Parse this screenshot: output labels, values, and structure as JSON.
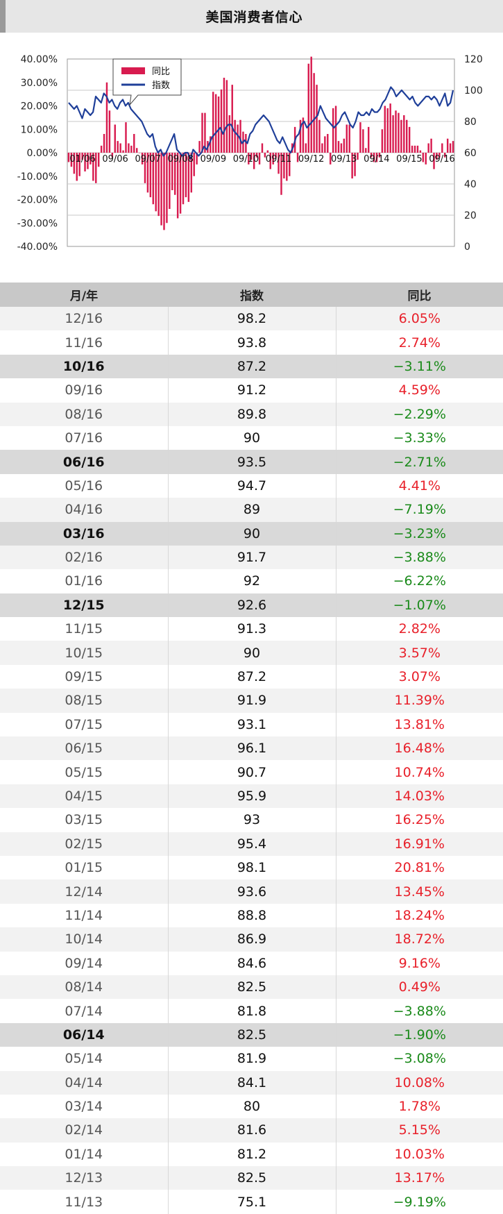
{
  "page_title": "美国消费者信心",
  "colors": {
    "bar": "#d81b4f",
    "line": "#1f3f99",
    "positive": "#e8202a",
    "negative": "#1a8a1a"
  },
  "chart_data": {
    "type": "bar+line",
    "series": [
      {
        "name": "同比",
        "kind": "bar",
        "axis": "left"
      },
      {
        "name": "指数",
        "kind": "line",
        "axis": "right"
      }
    ],
    "y_left": {
      "min": -40,
      "max": 40,
      "ticks": [
        "40.00%",
        "30.00%",
        "20.00%",
        "10.00%",
        "0.00%",
        "-10.00%",
        "-20.00%",
        "-30.00%",
        "-40.00%"
      ]
    },
    "y_right": {
      "min": 0,
      "max": 120,
      "ticks": [
        "120",
        "100",
        "80",
        "60",
        "40",
        "20",
        "0"
      ]
    },
    "x_labels": [
      "01/06",
      "09/06",
      "09/07",
      "09/08",
      "09/09",
      "09/10",
      "09/11",
      "09/12",
      "09/13",
      "09/14",
      "09/15",
      "09/16"
    ],
    "grid": true,
    "legend_position": "top-left",
    "bars": [
      -4,
      -6,
      -9,
      -12,
      -10,
      -3,
      -8,
      -7,
      -5,
      -12,
      -13,
      -6,
      3,
      8,
      30,
      18,
      -2,
      12,
      5,
      4,
      1,
      13,
      4,
      3,
      8,
      2,
      0,
      -5,
      -13,
      -17,
      -19,
      -22,
      -25,
      -27,
      -31,
      -33,
      -30,
      -24,
      -16,
      -18,
      -28,
      -26,
      -22,
      -19,
      -21,
      -17,
      -10,
      -5,
      5,
      17,
      17,
      5,
      7,
      26,
      25,
      24,
      27,
      32,
      31,
      16,
      29,
      14,
      12,
      14,
      9,
      8,
      -5,
      -3,
      -7,
      -2,
      -5,
      4,
      -2,
      1,
      -7,
      -5,
      -2,
      -9,
      -18,
      -11,
      -12,
      -10,
      4,
      11,
      -4,
      14,
      15,
      4,
      38,
      41,
      34,
      29,
      14,
      4,
      7,
      8,
      -5,
      19,
      20,
      5,
      4,
      6,
      12,
      12,
      -11,
      -10,
      -3,
      13,
      10,
      2,
      11,
      -2,
      -4,
      -4,
      -2,
      10,
      20,
      19,
      21,
      16,
      18,
      17,
      14,
      16,
      14,
      11,
      3,
      3,
      3,
      1,
      -4,
      -5,
      4,
      6,
      -7,
      -3,
      -2,
      4,
      -2,
      6,
      4,
      5
    ]
  },
  "table": {
    "headers": [
      "月/年",
      "指数",
      "同比"
    ],
    "rows": [
      {
        "month": "12/16",
        "index": "98.2",
        "yoy": "6.05%"
      },
      {
        "month": "11/16",
        "index": "93.8",
        "yoy": "2.74%"
      },
      {
        "month": "10/16",
        "index": "87.2",
        "yoy": "−3.11%"
      },
      {
        "month": "09/16",
        "index": "91.2",
        "yoy": "4.59%"
      },
      {
        "month": "08/16",
        "index": "89.8",
        "yoy": "−2.29%"
      },
      {
        "month": "07/16",
        "index": "90",
        "yoy": "−3.33%"
      },
      {
        "month": "06/16",
        "index": "93.5",
        "yoy": "−2.71%"
      },
      {
        "month": "05/16",
        "index": "94.7",
        "yoy": "4.41%"
      },
      {
        "month": "04/16",
        "index": "89",
        "yoy": "−7.19%"
      },
      {
        "month": "03/16",
        "index": "90",
        "yoy": "−3.23%"
      },
      {
        "month": "02/16",
        "index": "91.7",
        "yoy": "−3.88%"
      },
      {
        "month": "01/16",
        "index": "92",
        "yoy": "−6.22%"
      },
      {
        "month": "12/15",
        "index": "92.6",
        "yoy": "−1.07%"
      },
      {
        "month": "11/15",
        "index": "91.3",
        "yoy": "2.82%"
      },
      {
        "month": "10/15",
        "index": "90",
        "yoy": "3.57%"
      },
      {
        "month": "09/15",
        "index": "87.2",
        "yoy": "3.07%"
      },
      {
        "month": "08/15",
        "index": "91.9",
        "yoy": "11.39%"
      },
      {
        "month": "07/15",
        "index": "93.1",
        "yoy": "13.81%"
      },
      {
        "month": "06/15",
        "index": "96.1",
        "yoy": "16.48%"
      },
      {
        "month": "05/15",
        "index": "90.7",
        "yoy": "10.74%"
      },
      {
        "month": "04/15",
        "index": "95.9",
        "yoy": "14.03%"
      },
      {
        "month": "03/15",
        "index": "93",
        "yoy": "16.25%"
      },
      {
        "month": "02/15",
        "index": "95.4",
        "yoy": "16.91%"
      },
      {
        "month": "01/15",
        "index": "98.1",
        "yoy": "20.81%"
      },
      {
        "month": "12/14",
        "index": "93.6",
        "yoy": "13.45%"
      },
      {
        "month": "11/14",
        "index": "88.8",
        "yoy": "18.24%"
      },
      {
        "month": "10/14",
        "index": "86.9",
        "yoy": "18.72%"
      },
      {
        "month": "09/14",
        "index": "84.6",
        "yoy": "9.16%"
      },
      {
        "month": "08/14",
        "index": "82.5",
        "yoy": "0.49%"
      },
      {
        "month": "07/14",
        "index": "81.8",
        "yoy": "−3.88%"
      },
      {
        "month": "06/14",
        "index": "82.5",
        "yoy": "−1.90%"
      },
      {
        "month": "05/14",
        "index": "81.9",
        "yoy": "−3.08%"
      },
      {
        "month": "04/14",
        "index": "84.1",
        "yoy": "10.08%"
      },
      {
        "month": "03/14",
        "index": "80",
        "yoy": "1.78%"
      },
      {
        "month": "02/14",
        "index": "81.6",
        "yoy": "5.15%"
      },
      {
        "month": "01/14",
        "index": "81.2",
        "yoy": "10.03%"
      },
      {
        "month": "12/13",
        "index": "82.5",
        "yoy": "13.17%"
      },
      {
        "month": "11/13",
        "index": "75.1",
        "yoy": "−9.19%"
      }
    ],
    "highlight_months": [
      "10/16",
      "06/16",
      "03/16",
      "12/15",
      "06/14"
    ]
  }
}
